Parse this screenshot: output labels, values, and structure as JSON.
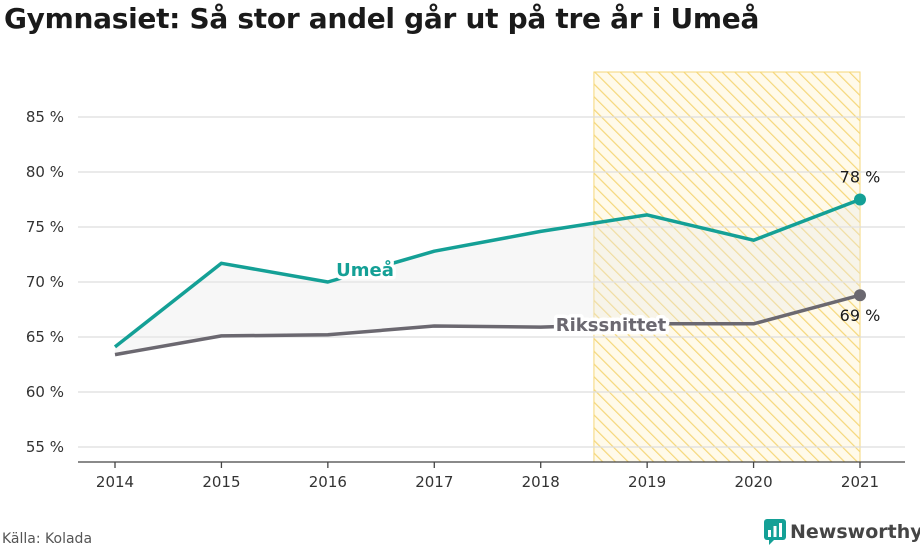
{
  "title": "Gymnasiet: Så stor andel går ut på tre år i Umeå",
  "source": "Källa: Kolada",
  "brand": "Newsworthy",
  "colors": {
    "umea": "#14a096",
    "riket": "#6b6870",
    "grid": "#dddddd",
    "highlight": "#f5d77a",
    "brand": "#14a096"
  },
  "chart_data": {
    "type": "line",
    "x": [
      2014,
      2015,
      2016,
      2017,
      2018,
      2019,
      2020,
      2021
    ],
    "ylim": [
      53,
      88
    ],
    "yticks": [
      55,
      60,
      65,
      70,
      75,
      80,
      85
    ],
    "ytick_labels": [
      "55 %",
      "60 %",
      "65 %",
      "70 %",
      "75 %",
      "80 %",
      "85 %"
    ],
    "grid": true,
    "highlight_period": [
      2018.5,
      2021
    ],
    "series": [
      {
        "name": "Umeå",
        "values": [
          64.1,
          71.7,
          70.0,
          72.8,
          74.6,
          76.1,
          73.8,
          77.5
        ],
        "end_label": "78 %"
      },
      {
        "name": "Rikssnittet",
        "values": [
          63.4,
          65.1,
          65.2,
          66.0,
          65.9,
          66.2,
          66.2,
          68.8
        ],
        "end_label": "69 %"
      }
    ]
  }
}
